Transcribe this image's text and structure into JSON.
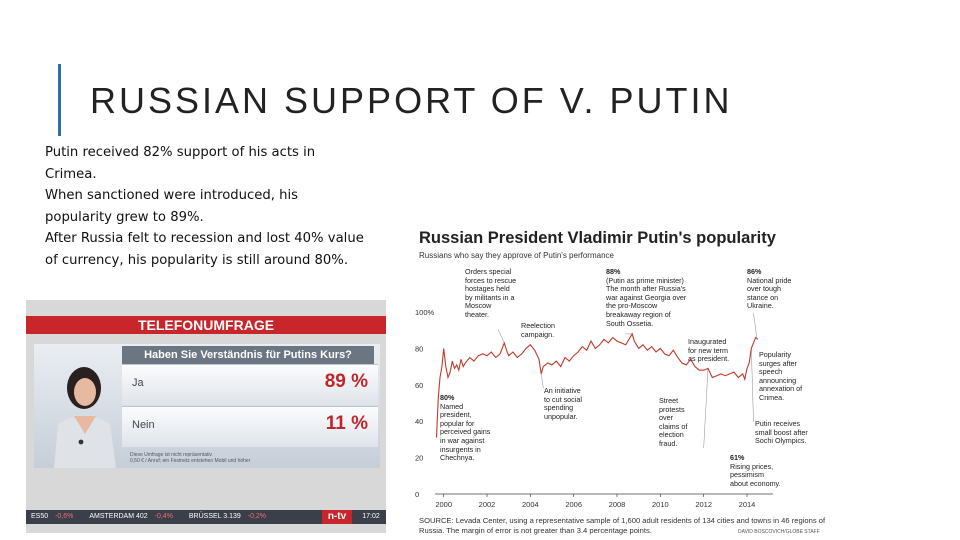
{
  "slide": {
    "title": "RUSSIAN SUPPORT OF V. PUTIN",
    "body_lines": [
      "Putin received 82% support of his acts in",
      "Crimea.",
      "When sanctioned were introduced, his",
      "popularity grew to 89%.",
      "After Russia felt to recession and lost 40% value",
      "of currency, his popularity  is still around 80%."
    ]
  },
  "tv": {
    "banner": "TELEFONUMFRAGE",
    "question": "Haben Sie Verständnis für Putins Kurs?",
    "options": [
      {
        "label": "Ja",
        "value": "89 %"
      },
      {
        "label": "Nein",
        "value": "11 %"
      }
    ],
    "footnote_lines": [
      "Diese Umfrage ist nicht repräsentativ",
      "0,50 € / Anruf; ein Festnetz entstehen Mobil und höher"
    ],
    "ticker": [
      {
        "name": "ES50",
        "change": "-0,6%"
      },
      {
        "name": "AMSTERDAM 402",
        "change": "-0,4%"
      },
      {
        "name": "BRÜSSEL 3.139",
        "change": "-0,2%"
      }
    ],
    "logo": "n-tv",
    "clock": "17:02",
    "colors": {
      "banner": "#c9262b",
      "percent": "#c0262c"
    }
  },
  "chart": {
    "title": "Russian President Vladimir Putin's popularity",
    "subtitle": "Russians who say they approve of Putin's performance",
    "annotations": [
      {
        "text": "Orders special\nforces to rescue\nhostages held\nby militants in a\nMoscow\ntheater."
      },
      {
        "text": "Reelection\ncampaign."
      },
      {
        "bold": "88%",
        "text": "(Putin as prime minister)\nThe month after Russia's\nwar against Georgia over\nthe pro-Moscow\nbreakaway region of\nSouth Ossetia."
      },
      {
        "bold": "86%",
        "text": "National pride\nover tough\nstance on\nUkraine."
      },
      {
        "text": "Inaugurated\nfor new term\nas president."
      },
      {
        "text": "Popularity\nsurges after\nspeech\nannouncing\nannexation of\nCrimea."
      },
      {
        "bold": "80%",
        "text": "Named\npresident,\npopular for\nperceived gains\nin war against\ninsurgents in\nChechnya."
      },
      {
        "text": "An initiative\nto cut social\nspending\nunpopular."
      },
      {
        "text": "Street\nprotests\nover\nclaims of\nelection\nfraud."
      },
      {
        "text": "Putin receives\nsmall boost after\nSochi Olympics."
      },
      {
        "bold": "61%",
        "text": "Rising prices,\npessimism\nabout economy."
      }
    ],
    "source": "SOURCE: Levada Center, using a representative sample of 1,600 adult residents of 134 cities and towns in 46 regions of Russia. The margin of error is not greater than 3.4 percentage points.",
    "credit": "DAVID BOSCOVICH/GLOBE STAFF"
  },
  "chart_data": {
    "type": "line",
    "title": "Russian President Vladimir Putin's popularity",
    "subtitle": "Russians who say they approve of Putin's performance",
    "xlabel": "",
    "ylabel": "",
    "xlim": [
      1999.6,
      2015.2
    ],
    "ylim": [
      0,
      100
    ],
    "x_ticks": [
      2000,
      2002,
      2004,
      2006,
      2008,
      2010,
      2012,
      2014
    ],
    "x_tick_labels": [
      "2000",
      "2002",
      "2004",
      "2006",
      "2008",
      "2010",
      "2012",
      "2014"
    ],
    "y_ticks": [
      0,
      20,
      40,
      60,
      80,
      100
    ],
    "y_tick_labels": [
      "0",
      "20",
      "40",
      "60",
      "80",
      "100%"
    ],
    "grid": false,
    "series": [
      {
        "color": "#c0392b",
        "x": [
          1999.67,
          1999.75,
          1999.83,
          1999.92,
          2000.0,
          2000.1,
          2000.2,
          2000.3,
          2000.4,
          2000.5,
          2000.6,
          2000.7,
          2000.8,
          2000.9,
          2001.0,
          2001.2,
          2001.4,
          2001.6,
          2001.8,
          2002.0,
          2002.2,
          2002.4,
          2002.6,
          2002.8,
          2002.9,
          2003.0,
          2003.2,
          2003.4,
          2003.6,
          2003.8,
          2004.0,
          2004.2,
          2004.4,
          2004.5,
          2004.6,
          2004.8,
          2005.0,
          2005.2,
          2005.4,
          2005.6,
          2005.8,
          2006.0,
          2006.2,
          2006.4,
          2006.6,
          2006.8,
          2007.0,
          2007.2,
          2007.4,
          2007.6,
          2007.8,
          2008.0,
          2008.2,
          2008.4,
          2008.6,
          2008.7,
          2008.8,
          2009.0,
          2009.2,
          2009.4,
          2009.6,
          2009.8,
          2010.0,
          2010.2,
          2010.4,
          2010.6,
          2010.8,
          2011.0,
          2011.2,
          2011.4,
          2011.6,
          2011.8,
          2012.0,
          2012.2,
          2012.4,
          2012.6,
          2012.8,
          2013.0,
          2013.2,
          2013.4,
          2013.6,
          2013.8,
          2013.9,
          2014.0,
          2014.1,
          2014.2,
          2014.3,
          2014.4,
          2014.5
        ],
        "values": [
          31,
          53,
          64,
          70,
          80,
          70,
          64,
          67,
          73,
          69,
          71,
          68,
          74,
          70,
          72,
          75,
          73,
          76,
          77,
          76,
          78,
          75,
          77,
          83,
          79,
          76,
          78,
          75,
          77,
          80,
          82,
          79,
          74,
          66,
          70,
          72,
          71,
          73,
          70,
          75,
          73,
          76,
          78,
          81,
          79,
          84,
          80,
          82,
          85,
          83,
          86,
          84,
          83,
          82,
          86,
          88,
          84,
          80,
          82,
          79,
          81,
          78,
          80,
          77,
          76,
          79,
          75,
          72,
          71,
          74,
          70,
          68,
          68,
          69,
          64,
          65,
          66,
          65,
          66,
          67,
          64,
          66,
          63,
          69,
          72,
          80,
          83,
          86,
          85
        ]
      }
    ]
  }
}
